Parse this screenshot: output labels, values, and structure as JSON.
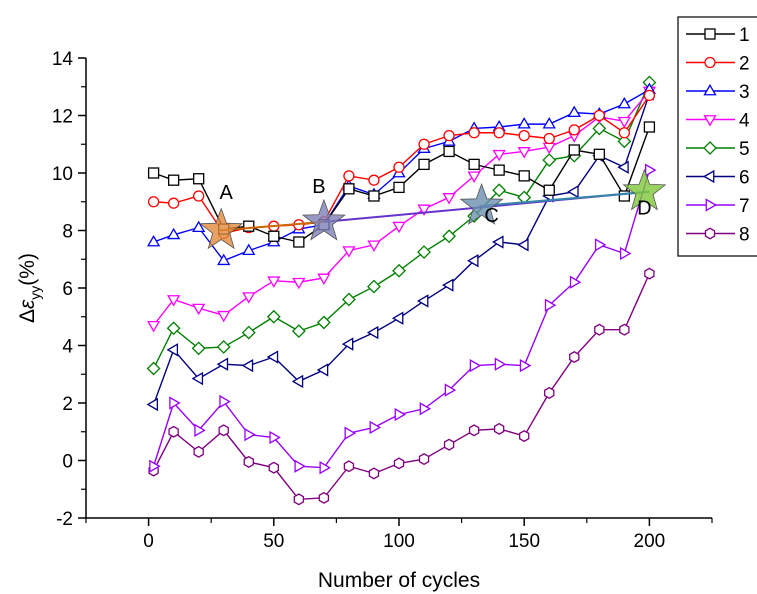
{
  "chart_data": {
    "type": "line",
    "xlabel": "Number of cycles",
    "ylabel": "Δε_yy(%)",
    "ylabel_parts": {
      "delta": "Δ",
      "eps": "ε",
      "sub": "yy",
      "unit": "(%)"
    },
    "xlim": [
      -25,
      225
    ],
    "ylim": [
      -2,
      14
    ],
    "xticks": [
      0,
      50,
      100,
      150,
      200
    ],
    "yticks": [
      -2,
      0,
      2,
      4,
      6,
      8,
      10,
      12,
      14
    ],
    "grid": false,
    "legend_position": "top-right",
    "series": [
      {
        "name": "1",
        "color": "#000000",
        "marker": "square",
        "x": [
          2,
          10,
          20,
          30,
          40,
          50,
          60,
          70,
          80,
          90,
          100,
          110,
          120,
          130,
          140,
          150,
          160,
          170,
          180,
          190,
          200
        ],
        "y": [
          10.0,
          9.75,
          9.8,
          8.05,
          8.15,
          7.8,
          7.6,
          8.2,
          9.45,
          9.2,
          9.5,
          10.3,
          10.75,
          10.3,
          10.1,
          9.9,
          9.4,
          10.8,
          10.65,
          9.2,
          11.6
        ]
      },
      {
        "name": "2",
        "color": "#ff0000",
        "marker": "circle",
        "x": [
          2,
          10,
          20,
          30,
          40,
          50,
          60,
          70,
          80,
          90,
          100,
          110,
          120,
          130,
          140,
          150,
          160,
          170,
          180,
          190,
          200
        ],
        "y": [
          9.0,
          8.95,
          9.2,
          7.9,
          8.1,
          8.15,
          8.2,
          8.3,
          9.9,
          9.75,
          10.2,
          11.0,
          11.3,
          11.4,
          11.4,
          11.3,
          11.2,
          11.5,
          12.0,
          11.4,
          12.7
        ]
      },
      {
        "name": "3",
        "color": "#0000ff",
        "marker": "triangle-up",
        "x": [
          2,
          10,
          20,
          30,
          40,
          50,
          60,
          70,
          80,
          90,
          100,
          110,
          120,
          130,
          140,
          150,
          160,
          170,
          180,
          190,
          200
        ],
        "y": [
          7.6,
          7.85,
          8.1,
          6.95,
          7.3,
          7.6,
          8.05,
          8.2,
          9.55,
          9.25,
          10.0,
          10.85,
          11.1,
          11.55,
          11.6,
          11.7,
          11.7,
          12.1,
          12.05,
          12.4,
          12.9
        ]
      },
      {
        "name": "4",
        "color": "#ff00ff",
        "marker": "triangle-down",
        "x": [
          2,
          10,
          20,
          30,
          40,
          50,
          60,
          70,
          80,
          90,
          100,
          110,
          120,
          130,
          140,
          150,
          160,
          170,
          180,
          190,
          200
        ],
        "y": [
          4.7,
          5.6,
          5.3,
          5.05,
          5.7,
          6.25,
          6.2,
          6.35,
          7.3,
          7.5,
          8.15,
          8.75,
          9.15,
          9.9,
          10.65,
          10.75,
          10.9,
          11.3,
          11.95,
          11.8,
          12.85
        ]
      },
      {
        "name": "5",
        "color": "#008000",
        "marker": "diamond",
        "x": [
          2,
          10,
          20,
          30,
          40,
          50,
          60,
          70,
          80,
          90,
          100,
          110,
          120,
          130,
          140,
          150,
          160,
          170,
          180,
          190,
          200
        ],
        "y": [
          3.2,
          4.6,
          3.9,
          3.95,
          4.45,
          5.0,
          4.5,
          4.8,
          5.6,
          6.05,
          6.6,
          7.25,
          7.8,
          8.5,
          9.4,
          9.15,
          10.45,
          10.6,
          11.55,
          11.1,
          13.15
        ]
      },
      {
        "name": "6",
        "color": "#000080",
        "marker": "triangle-left",
        "x": [
          2,
          10,
          20,
          30,
          40,
          50,
          60,
          70,
          80,
          90,
          100,
          110,
          120,
          130,
          140,
          150,
          160,
          170,
          180,
          190,
          200
        ],
        "y": [
          1.95,
          3.85,
          2.85,
          3.35,
          3.3,
          3.6,
          2.75,
          3.15,
          4.05,
          4.45,
          4.95,
          5.55,
          6.1,
          6.95,
          7.6,
          7.5,
          9.2,
          9.35,
          10.6,
          10.2,
          12.75
        ]
      },
      {
        "name": "7",
        "color": "#9900ff",
        "marker": "triangle-right",
        "x": [
          2,
          10,
          20,
          30,
          40,
          50,
          60,
          70,
          80,
          90,
          100,
          110,
          120,
          130,
          140,
          150,
          160,
          170,
          180,
          190,
          200
        ],
        "y": [
          -0.2,
          2.0,
          1.05,
          2.05,
          0.9,
          0.8,
          -0.2,
          -0.25,
          0.95,
          1.15,
          1.6,
          1.8,
          2.45,
          3.3,
          3.35,
          3.3,
          5.4,
          6.2,
          7.5,
          7.2,
          10.1
        ]
      },
      {
        "name": "8",
        "color": "#800080",
        "marker": "hexagon",
        "x": [
          2,
          10,
          20,
          30,
          40,
          50,
          60,
          70,
          80,
          90,
          100,
          110,
          120,
          130,
          140,
          150,
          160,
          170,
          180,
          190,
          200
        ],
        "y": [
          -0.35,
          1.0,
          0.3,
          1.05,
          -0.05,
          -0.25,
          -1.35,
          -1.3,
          -0.2,
          -0.45,
          -0.1,
          0.05,
          0.55,
          1.05,
          1.1,
          0.85,
          2.35,
          3.6,
          4.55,
          4.55,
          6.5
        ]
      }
    ],
    "connector_lines": [
      {
        "color": "#6633cc",
        "from": [
          70,
          8.3
        ],
        "to": [
          200,
          9.35
        ]
      },
      {
        "color": "#cc6600",
        "from": [
          28,
          8.0
        ],
        "to": [
          70,
          8.3
        ]
      },
      {
        "color": "#3388aa",
        "from": [
          132,
          8.85
        ],
        "to": [
          200,
          9.35
        ]
      }
    ],
    "annotations": [
      {
        "text": "A",
        "x": 29,
        "y": 8.0,
        "star_color": "#e08a3c",
        "label_x": 31,
        "label_y": 9.1
      },
      {
        "text": "B",
        "x": 70,
        "y": 8.3,
        "star_color": "#7d7fb5",
        "label_x": 68,
        "label_y": 9.3
      },
      {
        "text": "C",
        "x": 133,
        "y": 8.85,
        "star_color": "#6b8fb0",
        "label_x": 137,
        "label_y": 8.3
      },
      {
        "text": "D",
        "x": 198,
        "y": 9.35,
        "star_color": "#7ec83a",
        "label_x": 198,
        "label_y": 8.55
      }
    ]
  }
}
